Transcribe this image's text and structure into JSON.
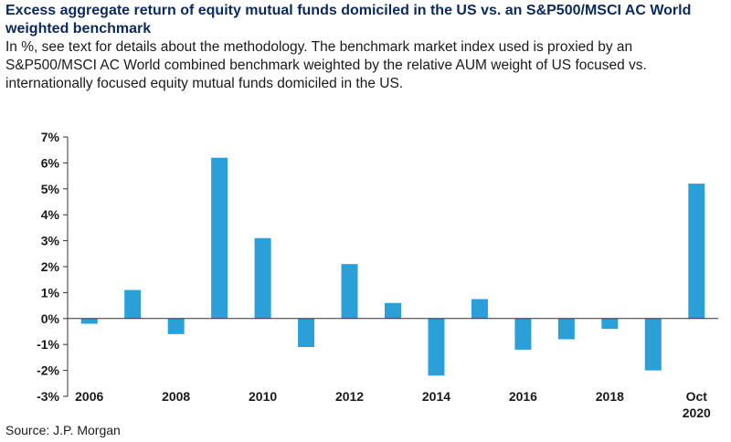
{
  "title": "Excess aggregate return of equity mutual funds domiciled in the US vs. an S&P500/MSCI AC World weighted benchmark",
  "subtitle": "In %, see text for details about the methodology. The benchmark market index used is proxied by an S&P500/MSCI AC World combined benchmark weighted by the relative AUM weight of US focused vs. internationally focused equity mutual funds domiciled in the US.",
  "source": "Source: J.P. Morgan",
  "bar_color": "#2b9fd8",
  "chart_data": {
    "type": "bar",
    "categories": [
      "2006",
      "2007",
      "2008",
      "2009",
      "2010",
      "2011",
      "2012",
      "2013",
      "2014",
      "2015",
      "2016",
      "2017",
      "2018",
      "2019",
      "Oct 2020"
    ],
    "values": [
      -0.2,
      1.1,
      -0.6,
      6.2,
      3.1,
      -1.1,
      2.1,
      0.6,
      -2.2,
      0.75,
      -1.2,
      -0.8,
      -0.4,
      -2.0,
      5.2
    ],
    "x_tick_labels": [
      {
        "index": 0,
        "lines": [
          "2006"
        ]
      },
      {
        "index": 2,
        "lines": [
          "2008"
        ]
      },
      {
        "index": 4,
        "lines": [
          "2010"
        ]
      },
      {
        "index": 6,
        "lines": [
          "2012"
        ]
      },
      {
        "index": 8,
        "lines": [
          "2014"
        ]
      },
      {
        "index": 10,
        "lines": [
          "2016"
        ]
      },
      {
        "index": 12,
        "lines": [
          "2018"
        ]
      },
      {
        "index": 14,
        "lines": [
          "Oct",
          "2020"
        ]
      }
    ],
    "y_ticks": [
      7,
      6,
      5,
      4,
      3,
      2,
      1,
      0,
      -1,
      -2,
      -3
    ],
    "y_tick_labels": [
      "7%",
      "6%",
      "5%",
      "4%",
      "3%",
      "2%",
      "1%",
      "0%",
      "-1%",
      "-2%",
      "-3%"
    ],
    "ylim": [
      -3,
      7
    ],
    "grid": false,
    "xlabel": "",
    "ylabel": ""
  }
}
